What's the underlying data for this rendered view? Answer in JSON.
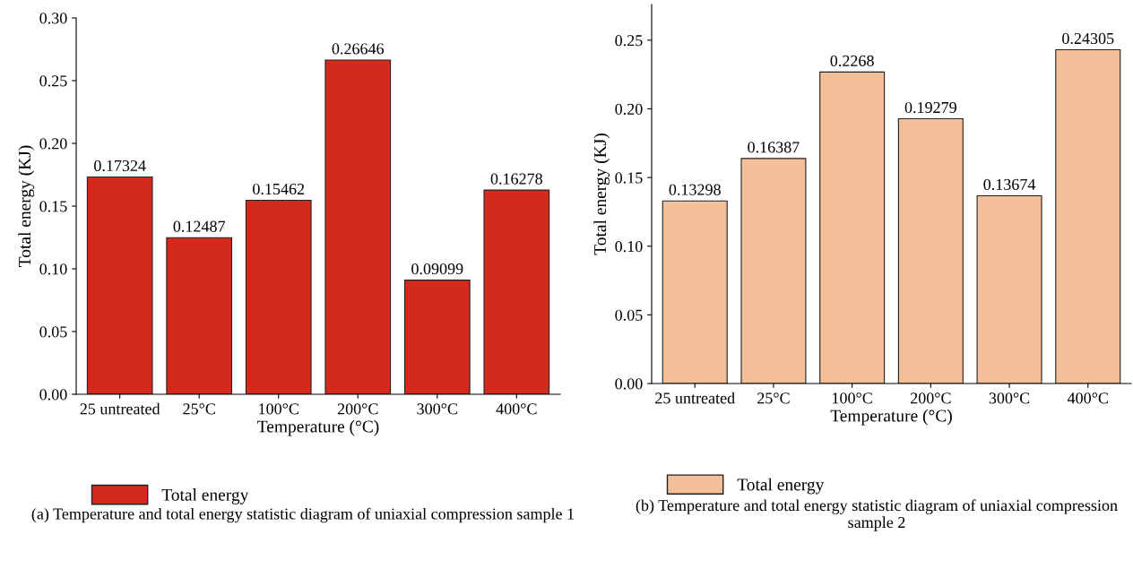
{
  "chart_data": [
    {
      "type": "bar",
      "xlabel": "Temperature (°C)",
      "ylabel": "Total energy (KJ)",
      "categories": [
        "25 untreated",
        "25°C",
        "100°C",
        "200°C",
        "300°C",
        "400°C"
      ],
      "series": [
        {
          "name": "Total energy",
          "color": "#d42a1e",
          "values": [
            0.17324,
            0.12487,
            0.15462,
            0.26646,
            0.09099,
            0.16278
          ]
        }
      ],
      "value_labels": [
        "0.17324",
        "0.12487",
        "0.15462",
        "0.26646",
        "0.09099",
        "0.16278"
      ],
      "ylim": [
        0,
        0.3
      ],
      "yticks": [
        {
          "value": 0,
          "label": "0.00"
        },
        {
          "value": 0.05,
          "label": "0.05"
        },
        {
          "value": 0.1,
          "label": "0.10"
        },
        {
          "value": 0.15,
          "label": "0.15"
        },
        {
          "value": 0.2,
          "label": "0.20"
        },
        {
          "value": 0.25,
          "label": "0.25"
        },
        {
          "value": 0.3,
          "label": "0.30"
        }
      ],
      "grid": false,
      "legend": "bottom left",
      "annotations": [
        "(a) Temperature and total energy statistic diagram of uniaxial compression sample 1"
      ]
    },
    {
      "type": "bar",
      "xlabel": "Temperature (°C)",
      "ylabel": "Total energy (KJ)",
      "categories": [
        "25 untreated",
        "25°C",
        "100°C",
        "200°C",
        "300°C",
        "400°C"
      ],
      "series": [
        {
          "name": "Total energy",
          "color": "#f2bf98",
          "values": [
            0.13298,
            0.16387,
            0.2268,
            0.19279,
            0.13674,
            0.24305
          ]
        }
      ],
      "value_labels": [
        "0.13298",
        "0.16387",
        "0.2268",
        "0.19279",
        "0.13674",
        "0.24305"
      ],
      "ylim": [
        0,
        0.276
      ],
      "yticks": [
        {
          "value": 0,
          "label": "0.00"
        },
        {
          "value": 0.05,
          "label": "0.05"
        },
        {
          "value": 0.1,
          "label": "0.10"
        },
        {
          "value": 0.15,
          "label": "0.15"
        },
        {
          "value": 0.2,
          "label": "0.20"
        },
        {
          "value": 0.25,
          "label": "0.25"
        }
      ],
      "grid": false,
      "legend": "bottom left",
      "annotations": [
        "(b) Temperature and total energy statistic diagram of uniaxial compression sample 2"
      ]
    }
  ]
}
